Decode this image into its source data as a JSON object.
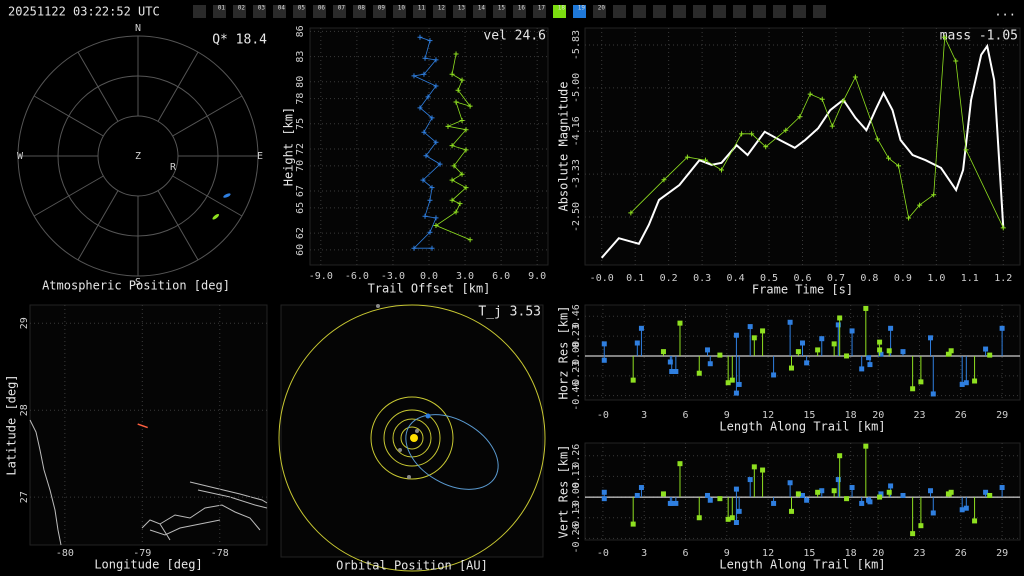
{
  "header": {
    "timestamp": "20251122 03:22:52 UTC",
    "tabs": [
      "01",
      "02",
      "03",
      "04",
      "05",
      "06",
      "07",
      "08",
      "09",
      "10",
      "11",
      "12",
      "13",
      "14",
      "15",
      "16",
      "17",
      "18",
      "19",
      "20"
    ],
    "menu": "..."
  },
  "chart_data": [
    {
      "type": "polar",
      "title": "Atmospheric Position [deg]",
      "annotation": "Q* 18.4",
      "compass": [
        "N",
        "E",
        "S",
        "W"
      ],
      "center_label": "Z",
      "radiant_label": "R",
      "rlim": [
        0,
        90
      ],
      "series": [
        {
          "color": "#2f7fe0",
          "x": [
            114
          ],
          "values": [
            73
          ]
        },
        {
          "color": "#8fe020",
          "x": [
            128
          ],
          "values": [
            74
          ]
        }
      ]
    },
    {
      "type": "line",
      "xlabel": "Trail Offset [km]",
      "ylabel": "Height [km]",
      "annotation": "vel 24.6",
      "xlim": [
        -9.9,
        9.9
      ],
      "ylim": [
        58.2,
        86.4
      ],
      "grid": true,
      "xticks": [
        {
          "value": -9,
          "label": "-9.0"
        },
        {
          "value": -6,
          "label": "-6.0"
        },
        {
          "value": -3,
          "label": "-3.0"
        },
        {
          "value": 0,
          "label": "0.0"
        },
        {
          "value": 3,
          "label": "3.0"
        },
        {
          "value": 6,
          "label": "6.0"
        },
        {
          "value": 9,
          "label": "9.0"
        }
      ],
      "yticks": [
        60,
        62,
        65,
        67,
        70,
        72,
        75,
        78,
        80,
        83,
        86
      ],
      "series": [
        {
          "color": "#2f7fe0",
          "x": [
            -0.75,
            0.08,
            -0.33,
            0.58,
            -0.42,
            -1.25,
            0.58,
            -0.08,
            -0.75,
            0.25,
            -0.42,
            0.58,
            -0.25,
            0.92,
            -0.5,
            0.25,
            0.08,
            -0.33,
            0.58,
            0.08,
            -1.25,
            0.25
          ],
          "values": [
            85.3,
            84.9,
            82.8,
            82.6,
            80.9,
            80.7,
            79.5,
            78.2,
            76.9,
            75.7,
            74.0,
            72.8,
            71.2,
            70.2,
            68.3,
            67.4,
            65.9,
            64.0,
            63.8,
            62.1,
            60.2,
            60.2
          ]
        },
        {
          "color": "#8fe020",
          "x": [
            2.25,
            1.92,
            2.75,
            2.42,
            3.42,
            2.25,
            2.75,
            1.58,
            3.08,
            1.92,
            3.08,
            2.08,
            2.75,
            1.92,
            3.08,
            1.92,
            2.58,
            2.25,
            0.58,
            3.42
          ],
          "values": [
            83.3,
            80.9,
            80.2,
            79.0,
            77.1,
            77.6,
            75.4,
            74.7,
            74.3,
            72.4,
            71.9,
            70.0,
            69.0,
            68.3,
            67.4,
            65.9,
            65.5,
            64.5,
            62.9,
            61.2
          ]
        }
      ]
    },
    {
      "type": "line",
      "xlabel": "Frame Time [s]",
      "ylabel": "Absolute Magnitude",
      "annotation": "mass -1.05",
      "xlim": [
        -0.05,
        1.25
      ],
      "ylim": [
        -1.57,
        -6.16
      ],
      "grid": true,
      "xticks": [
        {
          "value": 0,
          "label": "-0.0"
        },
        0.1,
        0.2,
        0.3,
        0.4,
        0.5,
        0.6,
        0.7,
        0.8,
        0.9,
        {
          "value": 1,
          "label": "1.0"
        },
        1.1,
        1.2
      ],
      "yticks": [
        -5.83,
        {
          "value": -5,
          "label": "-5.00"
        },
        -4.16,
        -3.33,
        {
          "value": -2.5,
          "label": "-2.50"
        }
      ],
      "series": [
        {
          "color": "#ffffff",
          "x": [
            0,
            0.051,
            0.111,
            0.141,
            0.171,
            0.232,
            0.292,
            0.328,
            0.358,
            0.403,
            0.436,
            0.487,
            0.532,
            0.577,
            0.608,
            0.647,
            0.683,
            0.722,
            0.758,
            0.791,
            0.818,
            0.842,
            0.869,
            0.893,
            0.929,
            0.968,
            1.014,
            1.059,
            1.08,
            1.104,
            1.134,
            1.152,
            1.173,
            1.2
          ],
          "values": [
            -1.71,
            -2.09,
            -1.98,
            -2.35,
            -2.83,
            -3.12,
            -3.6,
            -3.51,
            -3.55,
            -3.89,
            -3.7,
            -4.15,
            -3.99,
            -3.84,
            -3.99,
            -4.22,
            -4.57,
            -4.77,
            -4.42,
            -4.18,
            -4.57,
            -4.9,
            -4.57,
            -3.99,
            -3.7,
            -3.6,
            -3.45,
            -3.02,
            -3.41,
            -4.77,
            -5.64,
            -5.81,
            -5.15,
            -2.29
          ]
        },
        {
          "color": "#8fe020",
          "x": [
            0.087,
            0.186,
            0.256,
            0.31,
            0.358,
            0.418,
            0.448,
            0.49,
            0.55,
            0.592,
            0.623,
            0.659,
            0.689,
            0.722,
            0.758,
            0.824,
            0.857,
            0.887,
            0.917,
            0.95,
            0.992,
            1.025,
            1.058,
            1.089,
            1.2
          ],
          "values": [
            -2.58,
            -3.22,
            -3.66,
            -3.6,
            -3.41,
            -4.11,
            -4.11,
            -3.86,
            -4.18,
            -4.44,
            -4.88,
            -4.78,
            -4.26,
            -4.75,
            -5.21,
            -4.01,
            -3.64,
            -3.49,
            -2.48,
            -2.73,
            -2.93,
            -5.98,
            -5.52,
            -3.8,
            -2.29
          ]
        }
      ]
    },
    {
      "type": "map",
      "xlabel": "Longitude [deg]",
      "ylabel": "Latitude [deg]",
      "xlim": [
        -80.45,
        -77.39
      ],
      "ylim": [
        26.45,
        29.21
      ],
      "grid": true,
      "xticks": [
        -80,
        -79,
        -78
      ],
      "yticks": [
        27,
        28,
        29
      ],
      "series": [
        {
          "color": "#ff6040",
          "x": [
            -79.06,
            -78.93
          ],
          "values": [
            27.84,
            27.8
          ]
        }
      ]
    },
    {
      "type": "orbit",
      "title": "Orbital Position [AU]",
      "annotation": "T_j 3.53"
    },
    {
      "type": "stem",
      "xlabel": "Length Along Trail [km]",
      "ylabel": "Horz Res [km]",
      "xlim": [
        -1.3,
        30.3
      ],
      "ylim": [
        -0.51,
        0.59
      ],
      "grid": true,
      "xticks": [
        {
          "value": 0,
          "label": "-0"
        },
        3,
        6,
        9,
        12,
        15,
        18,
        20,
        23,
        26,
        29
      ],
      "yticks": [
        0.46,
        0.23,
        {
          "value": 0,
          "label": "-0.00"
        },
        -0.23,
        -0.46
      ],
      "series": [
        {
          "color": "#2f7fe0",
          "x": [
            0.1,
            0.1,
            2.5,
            2.8,
            4.9,
            5.0,
            5.3,
            7.6,
            7.8,
            9.7,
            9.7,
            9.9,
            10.7,
            12.4,
            13.6,
            14.5,
            14.8,
            15.9,
            17.1,
            18.1,
            18.8,
            19.3,
            19.4,
            20.2,
            20.9,
            21.8,
            23.8,
            24.0,
            26.1,
            26.4,
            27.8,
            29.0
          ],
          "values": [
            0.14,
            -0.05,
            0.15,
            0.32,
            -0.07,
            -0.18,
            -0.18,
            0.07,
            -0.09,
            0.24,
            -0.43,
            -0.33,
            0.34,
            -0.22,
            0.39,
            0.15,
            -0.08,
            0.2,
            0.36,
            0.29,
            -0.15,
            -0.02,
            -0.1,
            0.02,
            0.32,
            0.05,
            0.21,
            -0.44,
            -0.33,
            -0.31,
            0.08,
            0.32
          ]
        },
        {
          "color": "#8fe020",
          "x": [
            2.2,
            4.4,
            5.6,
            7.0,
            8.5,
            9.1,
            9.4,
            11.0,
            11.6,
            13.7,
            14.2,
            15.6,
            16.8,
            17.2,
            17.7,
            19.1,
            20.1,
            20.1,
            20.8,
            22.5,
            23.1,
            25.1,
            25.3,
            27.0,
            28.1
          ],
          "values": [
            -0.28,
            0.05,
            0.38,
            -0.2,
            0.01,
            -0.31,
            -0.28,
            0.21,
            0.29,
            -0.14,
            0.05,
            0.07,
            0.14,
            0.44,
            0.0,
            0.55,
            0.16,
            0.07,
            0.06,
            -0.38,
            -0.3,
            0.02,
            0.06,
            -0.29,
            0.01
          ]
        }
      ]
    },
    {
      "type": "stem",
      "xlabel": "Length Along Trail [km]",
      "ylabel": "Vert Res [km]",
      "xlim": [
        -1.3,
        30.3
      ],
      "ylim": [
        -0.27,
        0.34
      ],
      "grid": true,
      "xticks": [
        {
          "value": 0,
          "label": "-0"
        },
        3,
        6,
        9,
        12,
        15,
        18,
        20,
        23,
        26,
        29
      ],
      "yticks": [
        0.26,
        0.13,
        {
          "value": 0,
          "label": "-0.00"
        },
        -0.13,
        -0.26
      ],
      "series": [
        {
          "color": "#2f7fe0",
          "x": [
            0.1,
            0.1,
            2.5,
            2.8,
            4.9,
            5.0,
            5.3,
            7.6,
            7.8,
            9.7,
            9.7,
            9.9,
            10.7,
            12.4,
            13.6,
            14.5,
            14.8,
            15.9,
            17.1,
            18.1,
            18.8,
            19.3,
            19.4,
            20.2,
            20.9,
            21.8,
            23.8,
            24.0,
            26.1,
            26.4,
            27.8,
            29.0
          ],
          "values": [
            0.03,
            -0.01,
            0.01,
            0.06,
            -0.04,
            -0.04,
            -0.04,
            0.01,
            -0.02,
            0.05,
            -0.16,
            -0.09,
            0.11,
            -0.04,
            0.09,
            0.01,
            -0.02,
            0.04,
            0.11,
            0.06,
            -0.04,
            -0.02,
            -0.03,
            0.02,
            0.07,
            0.01,
            0.04,
            -0.1,
            -0.08,
            -0.07,
            0.03,
            0.06
          ]
        },
        {
          "color": "#8fe020",
          "x": [
            2.2,
            4.4,
            5.6,
            7.0,
            8.5,
            9.1,
            9.4,
            11.0,
            11.6,
            13.7,
            14.2,
            15.6,
            16.8,
            17.2,
            17.7,
            19.1,
            20.1,
            20.8,
            22.5,
            23.1,
            25.1,
            25.3,
            27.0,
            28.1
          ],
          "values": [
            -0.17,
            0.02,
            0.21,
            -0.13,
            -0.01,
            -0.14,
            -0.13,
            0.19,
            0.17,
            -0.09,
            0.02,
            0.03,
            0.04,
            0.26,
            -0.01,
            0.32,
            0.0,
            0.03,
            -0.23,
            -0.18,
            0.02,
            0.03,
            -0.15,
            0.01
          ]
        }
      ]
    }
  ]
}
